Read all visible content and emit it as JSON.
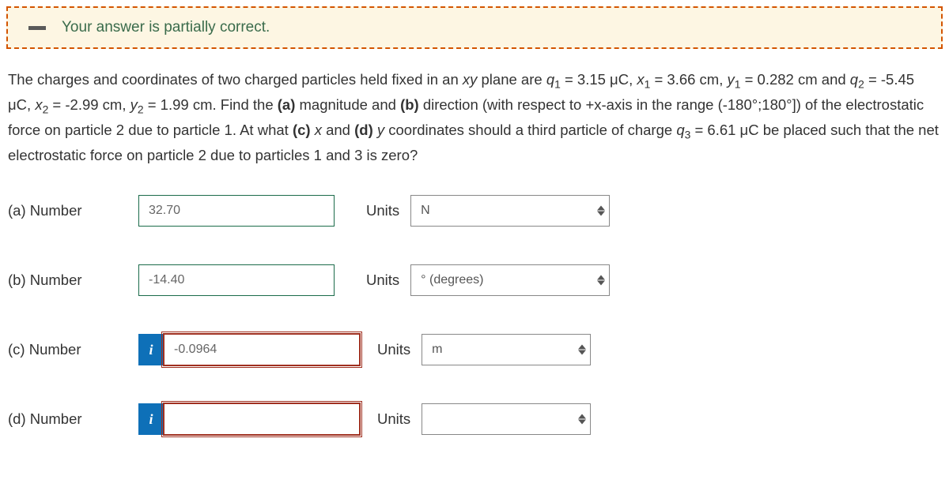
{
  "status": {
    "text": "Your answer is partially correct.",
    "bg_color": "#fdf6e3",
    "border_color": "#d35400",
    "text_color": "#3a6b4b"
  },
  "question": {
    "html": "The charges and coordinates of two charged particles held fixed in an <i>xy</i> plane are <i>q</i><sub>1</sub> = 3.15 μC, <i>x</i><sub>1</sub> = 3.66 cm, <i>y</i><sub>1</sub> = 0.282 cm and <i>q</i><sub>2</sub> = -5.45 μC, <i>x</i><sub>2</sub> = -2.99 cm, <i>y</i><sub>2</sub> = 1.99 cm. Find the <b>(a)</b> magnitude and <b>(b)</b> direction (with respect to +x-axis in the range (-180°;180°]) of the electrostatic force on particle 2 due to particle 1. At what <b>(c)</b> <i>x</i> and <b>(d)</b> <i>y</i> coordinates should a third particle of charge <i>q</i><sub>3</sub> = 6.61 μC be placed such that the net electrostatic force on particle 2 due to particles 1 and 3 is zero?"
  },
  "rows": {
    "a": {
      "label": "(a)   Number",
      "value": "32.70",
      "state": "correct",
      "info": false,
      "units_label": "Units",
      "units_value": "N",
      "units_pos": "a",
      "units_width": "a"
    },
    "b": {
      "label": "(b)   Number",
      "value": "-14.40",
      "state": "correct",
      "info": false,
      "units_label": "Units",
      "units_value": "° (degrees)",
      "units_pos": "a",
      "units_width": "a"
    },
    "c": {
      "label": "(c)   Number",
      "value": "-0.0964",
      "state": "incorrect",
      "info": true,
      "units_label": "Units",
      "units_value": "m",
      "units_pos": "b",
      "units_width": "b"
    },
    "d": {
      "label": "(d)   Number",
      "value": "",
      "state": "incorrect",
      "info": true,
      "units_label": "Units",
      "units_value": "",
      "units_pos": "b",
      "units_width": "b"
    }
  },
  "info_glyph": "i"
}
